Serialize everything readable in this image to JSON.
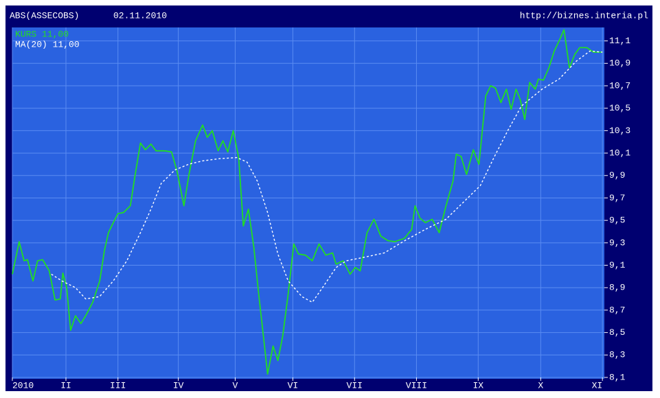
{
  "chart_data": {
    "type": "line",
    "title": "ABS(ASSECOBS)",
    "date": "02.11.2010",
    "source": "http://biznes.interia.pl",
    "xlim": [
      0,
      305
    ],
    "ylim": [
      8.1,
      11.22
    ],
    "xticks": [
      {
        "value": 0,
        "label": "2010"
      },
      {
        "value": 27.6,
        "label": "II"
      },
      {
        "value": 54.4,
        "label": "III"
      },
      {
        "value": 85.5,
        "label": "IV"
      },
      {
        "value": 114.8,
        "label": "V"
      },
      {
        "value": 144.5,
        "label": "VI"
      },
      {
        "value": 176.3,
        "label": "VII"
      },
      {
        "value": 208.2,
        "label": "VIII"
      },
      {
        "value": 240,
        "label": "IX"
      },
      {
        "value": 272.2,
        "label": "X"
      },
      {
        "value": 304,
        "label": "XI"
      }
    ],
    "yticks": [
      {
        "value": 8.1,
        "label": "8,1"
      },
      {
        "value": 8.3,
        "label": "8,3"
      },
      {
        "value": 8.5,
        "label": "8,5"
      },
      {
        "value": 8.7,
        "label": "8,7"
      },
      {
        "value": 8.9,
        "label": "8,9"
      },
      {
        "value": 9.1,
        "label": "9,1"
      },
      {
        "value": 9.3,
        "label": "9,3"
      },
      {
        "value": 9.5,
        "label": "9,5"
      },
      {
        "value": 9.7,
        "label": "9,7"
      },
      {
        "value": 9.9,
        "label": "9,9"
      },
      {
        "value": 10.1,
        "label": "10,1"
      },
      {
        "value": 10.3,
        "label": "10,3"
      },
      {
        "value": 10.5,
        "label": "10,5"
      },
      {
        "value": 10.7,
        "label": "10,7"
      },
      {
        "value": 10.9,
        "label": "10,9"
      },
      {
        "value": 11.1,
        "label": "11,1"
      }
    ],
    "grid": true,
    "series": [
      {
        "name": "KURS 11,00",
        "color": "#22dd22",
        "dashed": false,
        "x": [
          0,
          3.5,
          6,
          7.8,
          10.6,
          13,
          15.6,
          19,
          22,
          24.7,
          26,
          28,
          30,
          32.5,
          35.3,
          37.8,
          41.4,
          45,
          47.4,
          49.5,
          52,
          54.4,
          57.3,
          60.8,
          63,
          66,
          68.5,
          71.4,
          74,
          78.5,
          82,
          84.8,
          88.4,
          91,
          94.4,
          98,
          100.4,
          103,
          106,
          108.5,
          111,
          113.8,
          116.6,
          119,
          121.6,
          124.4,
          127,
          129.7,
          131.5,
          134.3,
          136.8,
          139.3,
          142,
          145,
          147.4,
          151,
          154.5,
          158,
          161.5,
          165,
          166.8,
          170.4,
          174,
          176.7,
          179.2,
          182.7,
          186.3,
          189.8,
          193.4,
          197,
          202,
          205.7,
          207.5,
          210,
          212.8,
          216.3,
          219.9,
          223.4,
          227,
          228.7,
          231.2,
          234,
          237.5,
          240.4,
          243.9,
          246.4,
          248.9,
          251.7,
          254.5,
          257,
          259.5,
          261.6,
          264,
          266.5,
          269.4,
          271,
          273.6,
          276.4,
          279.2,
          281.7,
          284.2,
          287,
          289.8,
          292.3,
          295.9,
          299.4,
          304
        ],
        "values": [
          9.02,
          9.31,
          9.14,
          9.15,
          8.96,
          9.14,
          9.15,
          9.05,
          8.79,
          8.8,
          9.03,
          8.9,
          8.52,
          8.65,
          8.58,
          8.65,
          8.77,
          8.96,
          9.23,
          9.39,
          9.48,
          9.56,
          9.57,
          9.63,
          9.88,
          10.19,
          10.13,
          10.18,
          10.12,
          10.12,
          10.11,
          9.94,
          9.63,
          9.91,
          10.21,
          10.35,
          10.24,
          10.3,
          10.12,
          10.21,
          10.11,
          10.3,
          10.06,
          9.45,
          9.6,
          9.26,
          8.83,
          8.41,
          8.13,
          8.38,
          8.25,
          8.47,
          8.83,
          9.29,
          9.2,
          9.19,
          9.14,
          9.29,
          9.19,
          9.21,
          9.11,
          9.14,
          9.02,
          9.08,
          9.05,
          9.39,
          9.51,
          9.36,
          9.32,
          9.31,
          9.34,
          9.42,
          9.63,
          9.52,
          9.48,
          9.51,
          9.39,
          9.63,
          9.85,
          10.09,
          10.07,
          9.91,
          10.13,
          10,
          10.61,
          10.7,
          10.68,
          10.55,
          10.67,
          10.49,
          10.67,
          10.58,
          10.4,
          10.73,
          10.67,
          10.76,
          10.75,
          10.86,
          11.01,
          11.1,
          11.2,
          10.86,
          10.98,
          11.04,
          11.04,
          11.0,
          11.0
        ]
      },
      {
        "name": "MA(20) 11,00",
        "color": "#ffffff",
        "dashed": true,
        "x": [
          20.1,
          25.5,
          32.5,
          37.8,
          44.9,
          52,
          59,
          66,
          71.4,
          76.7,
          83.8,
          90.8,
          97.9,
          106.7,
          115.6,
          120.9,
          126.2,
          131.5,
          136.8,
          142.1,
          149.2,
          154.5,
          159.8,
          166.8,
          172.1,
          181,
          191.6,
          202.2,
          212.8,
          223.4,
          230.5,
          241.1,
          248.1,
          255.2,
          262.3,
          272.9,
          281.7,
          290.6,
          297.6,
          304
        ],
        "values": [
          9.02,
          8.96,
          8.9,
          8.8,
          8.82,
          8.96,
          9.14,
          9.39,
          9.6,
          9.83,
          9.95,
          10,
          10.03,
          10.05,
          10.06,
          10.02,
          9.85,
          9.57,
          9.2,
          8.96,
          8.82,
          8.77,
          8.9,
          9.08,
          9.14,
          9.17,
          9.21,
          9.32,
          9.42,
          9.51,
          9.63,
          9.81,
          10.06,
          10.3,
          10.52,
          10.67,
          10.76,
          10.92,
          11.01,
          11.0
        ]
      }
    ]
  }
}
